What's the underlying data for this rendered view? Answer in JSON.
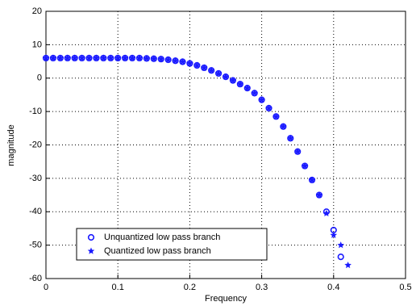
{
  "chart_data": {
    "type": "scatter",
    "xlabel": "Frequency",
    "ylabel": "magnitude",
    "xlim": [
      0,
      0.5
    ],
    "xticks": [
      0,
      0.1,
      0.2,
      0.3,
      0.4,
      0.5
    ],
    "ylim": [
      -60,
      20
    ],
    "yticks": [
      -60,
      -50,
      -40,
      -30,
      -20,
      -10,
      0,
      10,
      20
    ],
    "grid": true,
    "legend": "lower left",
    "series": [
      {
        "name": "Unquantized low pass branch",
        "color": "#1a1aff",
        "marker": "circle",
        "x": [
          0,
          0.01,
          0.02,
          0.03,
          0.04,
          0.05,
          0.06,
          0.07,
          0.08,
          0.09,
          0.1,
          0.11,
          0.12,
          0.13,
          0.14,
          0.15,
          0.16,
          0.17,
          0.18,
          0.19,
          0.2,
          0.21,
          0.22,
          0.23,
          0.24,
          0.25,
          0.26,
          0.27,
          0.28,
          0.29,
          0.3,
          0.31,
          0.32,
          0.33,
          0.34,
          0.35,
          0.36,
          0.37,
          0.38,
          0.39,
          0.4,
          0.41
        ],
        "values": [
          6,
          6,
          6,
          6,
          6,
          6,
          6,
          6,
          6,
          6,
          6,
          6,
          6,
          6,
          5.9,
          5.8,
          5.7,
          5.5,
          5.2,
          4.9,
          4.4,
          3.8,
          3.1,
          2.3,
          1.4,
          0.4,
          -0.7,
          -1.8,
          -3,
          -4.5,
          -6.5,
          -9,
          -11.5,
          -14.5,
          -18,
          -22,
          -26.3,
          -30.5,
          -35,
          -40,
          -45.5,
          -53.5
        ]
      },
      {
        "name": "Quantized low pass branch",
        "color": "#1a1aff",
        "marker": "star",
        "x": [
          0,
          0.01,
          0.02,
          0.03,
          0.04,
          0.05,
          0.06,
          0.07,
          0.08,
          0.09,
          0.1,
          0.11,
          0.12,
          0.13,
          0.14,
          0.15,
          0.16,
          0.17,
          0.18,
          0.19,
          0.2,
          0.21,
          0.22,
          0.23,
          0.24,
          0.25,
          0.26,
          0.27,
          0.28,
          0.29,
          0.3,
          0.31,
          0.32,
          0.33,
          0.34,
          0.35,
          0.36,
          0.37,
          0.38,
          0.39,
          0.4,
          0.41,
          0.42
        ],
        "values": [
          6,
          6,
          6,
          6,
          6,
          6,
          6,
          6,
          6,
          6,
          6,
          6,
          6,
          6,
          5.9,
          5.8,
          5.7,
          5.5,
          5.2,
          4.9,
          4.4,
          3.8,
          3.1,
          2.3,
          1.4,
          0.4,
          -0.7,
          -1.8,
          -3,
          -4.5,
          -6.5,
          -9,
          -11.5,
          -14.5,
          -18,
          -22,
          -26.3,
          -30.5,
          -35,
          -40.5,
          -47,
          -50,
          -56
        ]
      }
    ]
  }
}
